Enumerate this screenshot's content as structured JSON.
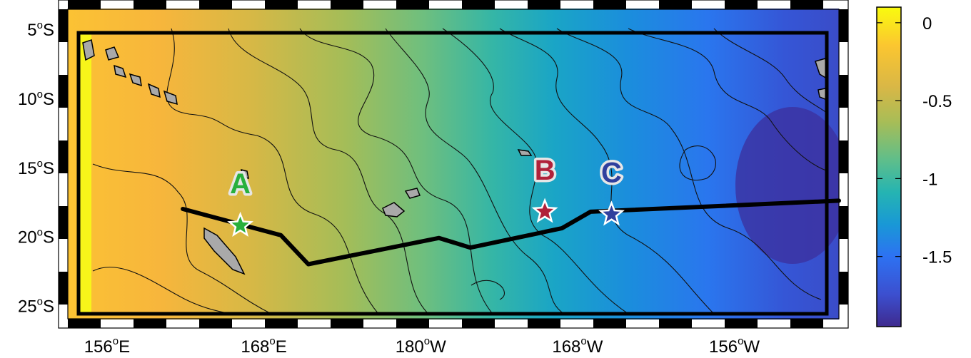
{
  "map": {
    "lat_ticks": [
      "5",
      "10",
      "15",
      "20",
      "25"
    ],
    "lat_suffix": "S",
    "lon_ticks": [
      {
        "deg": "156",
        "hemi": "E"
      },
      {
        "deg": "168",
        "hemi": "E"
      },
      {
        "deg": "180",
        "hemi": "W"
      },
      {
        "deg": "168",
        "hemi": "W"
      },
      {
        "deg": "156",
        "hemi": "W"
      }
    ],
    "degree_symbol": "o",
    "extent": {
      "lon_min": 153,
      "lon_max": 212,
      "lat_min": -26,
      "lat_max": -3.5
    }
  },
  "colorbar": {
    "tick_labels": [
      "0",
      "-0.5",
      "-1",
      "-1.5"
    ],
    "tick_values": [
      0,
      -0.5,
      -1,
      -1.5
    ],
    "range": [
      0.1,
      -1.95
    ],
    "colors": [
      "#f9fb0e",
      "#fbc630",
      "#d9b746",
      "#a7bd57",
      "#5ebe8b",
      "#25b4b2",
      "#1998d6",
      "#2d72f2",
      "#3c4fcf",
      "#3e2a8e"
    ]
  },
  "stations": [
    {
      "label": "A",
      "color": "#28b03c",
      "lon": 166.2,
      "lat": -19.2
    },
    {
      "label": "B",
      "color": "#b0213a",
      "lon": 189.5,
      "lat": -18.2
    },
    {
      "label": "C",
      "color": "#2f3f9e",
      "lon": 194.6,
      "lat": -18.4
    }
  ],
  "track": {
    "color": "#000000",
    "points_lonlat": [
      [
        161.8,
        -18.0
      ],
      [
        169.3,
        -19.9
      ],
      [
        171.4,
        -22.0
      ],
      [
        181.4,
        -20.1
      ],
      [
        183.8,
        -20.8
      ],
      [
        190.8,
        -19.4
      ],
      [
        193.0,
        -18.2
      ],
      [
        212.0,
        -17.4
      ]
    ]
  }
}
